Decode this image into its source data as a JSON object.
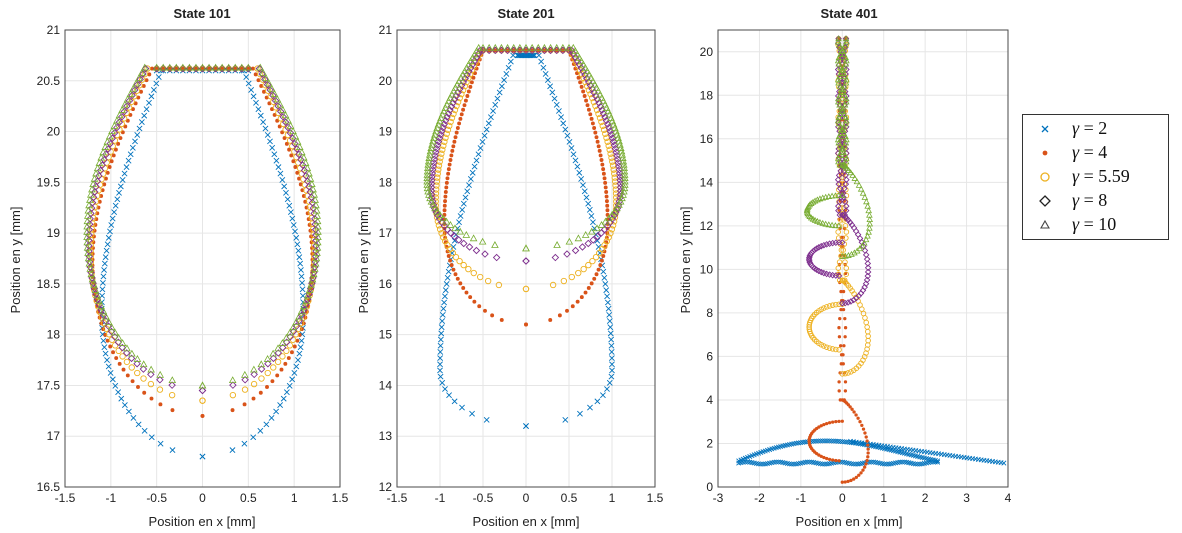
{
  "chart_data": [
    {
      "type": "scatter",
      "title": "State 101",
      "xlabel": "Position en x [mm]",
      "ylabel": "Position en y [mm]",
      "xlim": [
        -1.5,
        1.5
      ],
      "ylim": [
        16.5,
        21
      ],
      "xticks": [
        "-1.5",
        "-1",
        "-0.5",
        "0",
        "0.5",
        "1",
        "1.5"
      ],
      "yticks": [
        "16.5",
        "17",
        "17.5",
        "18",
        "18.5",
        "19",
        "19.5",
        "20",
        "20.5",
        "21"
      ],
      "grid": true,
      "series": [
        {
          "name": "γ = 2",
          "shape": "bulb",
          "params": {
            "topY": 20.6,
            "neckX": 0.45,
            "maxX": 1.1,
            "maxY": 18.2,
            "bottomY": 16.8,
            "topHalfWidth": 0.5
          }
        },
        {
          "name": "γ = 4",
          "shape": "bulb",
          "params": {
            "topY": 20.62,
            "neckX": 0.55,
            "maxX": 1.2,
            "maxY": 18.7,
            "bottomY": 17.2,
            "topHalfWidth": 0.5
          }
        },
        {
          "name": "γ = 5.59",
          "shape": "bulb",
          "params": {
            "topY": 20.62,
            "neckX": 0.6,
            "maxX": 1.22,
            "maxY": 18.8,
            "bottomY": 17.35,
            "topHalfWidth": 0.5
          }
        },
        {
          "name": "γ = 8",
          "shape": "bulb",
          "params": {
            "topY": 20.62,
            "neckX": 0.62,
            "maxX": 1.24,
            "maxY": 18.9,
            "bottomY": 17.45,
            "topHalfWidth": 0.5
          }
        },
        {
          "name": "γ = 10",
          "shape": "bulb",
          "params": {
            "topY": 20.63,
            "neckX": 0.63,
            "maxX": 1.26,
            "maxY": 19.0,
            "bottomY": 17.5,
            "topHalfWidth": 0.5
          }
        }
      ]
    },
    {
      "type": "scatter",
      "title": "State 201",
      "xlabel": "Position en x [mm]",
      "ylabel": "Position en y [mm]",
      "xlim": [
        -1.5,
        1.5
      ],
      "ylim": [
        12,
        21
      ],
      "xticks": [
        "-1.5",
        "-1",
        "-0.5",
        "0",
        "0.5",
        "1",
        "1.5"
      ],
      "yticks": [
        "12",
        "13",
        "14",
        "15",
        "16",
        "17",
        "18",
        "19",
        "20",
        "21"
      ],
      "grid": true,
      "series": [
        {
          "name": "γ = 2",
          "shape": "bulb",
          "params": {
            "topY": 20.5,
            "neckX": 0.15,
            "maxX": 1.0,
            "maxY": 14.3,
            "bottomY": 13.2,
            "topHalfWidth": 0.1
          }
        },
        {
          "name": "γ = 4",
          "shape": "bulb",
          "params": {
            "topY": 20.6,
            "neckX": 0.5,
            "maxX": 0.95,
            "maxY": 17.2,
            "bottomY": 15.2,
            "topHalfWidth": 0.5
          }
        },
        {
          "name": "γ = 5.59",
          "shape": "bulb",
          "params": {
            "topY": 20.6,
            "neckX": 0.52,
            "maxX": 1.05,
            "maxY": 17.6,
            "bottomY": 15.9,
            "topHalfWidth": 0.5
          }
        },
        {
          "name": "γ = 8",
          "shape": "bulb",
          "params": {
            "topY": 20.6,
            "neckX": 0.53,
            "maxX": 1.1,
            "maxY": 17.85,
            "bottomY": 16.45,
            "topHalfWidth": 0.5
          }
        },
        {
          "name": "γ = 10",
          "shape": "bulb",
          "params": {
            "topY": 20.65,
            "neckX": 0.55,
            "maxX": 1.15,
            "maxY": 18.0,
            "bottomY": 16.7,
            "topHalfWidth": 0.5
          }
        }
      ]
    },
    {
      "type": "scatter",
      "title": "State 401",
      "xlabel": "Position en x [mm]",
      "ylabel": "Position en y [mm]",
      "xlim": [
        -3,
        4
      ],
      "ylim": [
        0,
        21
      ],
      "xticks": [
        "-3",
        "-2",
        "-1",
        "0",
        "1",
        "2",
        "3",
        "4"
      ],
      "yticks": [
        "0",
        "2",
        "4",
        "6",
        "8",
        "10",
        "12",
        "14",
        "16",
        "18",
        "20"
      ],
      "grid": true,
      "series": [
        {
          "name": "γ = 2",
          "shape": "swirl"
        },
        {
          "name": "γ = 4",
          "shape": "drop",
          "params": {
            "topY": 20.6,
            "neckX": 0.08,
            "maxX": 0.8,
            "maxY": 2.5,
            "bottomY": 1.2,
            "neckY": 4.0,
            "offsetX": 0
          }
        },
        {
          "name": "γ = 5.59",
          "shape": "drop",
          "params": {
            "topY": 20.6,
            "neckX": 0.1,
            "maxX": 0.8,
            "maxY": 7.8,
            "bottomY": 6.3,
            "neckY": 9.5,
            "offsetX": 0
          }
        },
        {
          "name": "γ = 8",
          "shape": "drop",
          "params": {
            "topY": 20.6,
            "neckX": 0.1,
            "maxX": 0.8,
            "maxY": 10.8,
            "bottomY": 9.7,
            "neckY": 12.5,
            "offsetX": 0
          }
        },
        {
          "name": "γ = 10",
          "shape": "drop",
          "params": {
            "topY": 20.6,
            "neckX": 0.1,
            "maxX": 0.85,
            "maxY": 13.0,
            "bottomY": 12.0,
            "neckY": 14.8,
            "offsetX": 0
          }
        }
      ]
    }
  ],
  "legend": {
    "placement": "outside-right",
    "entries": [
      {
        "gamma": "γ",
        "label": " = 2",
        "marker": "x",
        "color": "#0072BD"
      },
      {
        "gamma": "γ",
        "label": " = 4",
        "marker": "dot",
        "color": "#D95319"
      },
      {
        "gamma": "γ",
        "label": " = 5.59",
        "marker": "circle",
        "color": "#EDB120"
      },
      {
        "gamma": "γ",
        "label": " = 8",
        "marker": "diamond",
        "color": "#7E2F8E"
      },
      {
        "gamma": "γ",
        "label": " = 10",
        "marker": "triangle",
        "color": "#77AC30"
      }
    ]
  },
  "colors": {
    "gamma2": "#0072BD",
    "gamma4": "#D95319",
    "gamma559": "#EDB120",
    "gamma8": "#7E2F8E",
    "gamma10": "#77AC30"
  }
}
